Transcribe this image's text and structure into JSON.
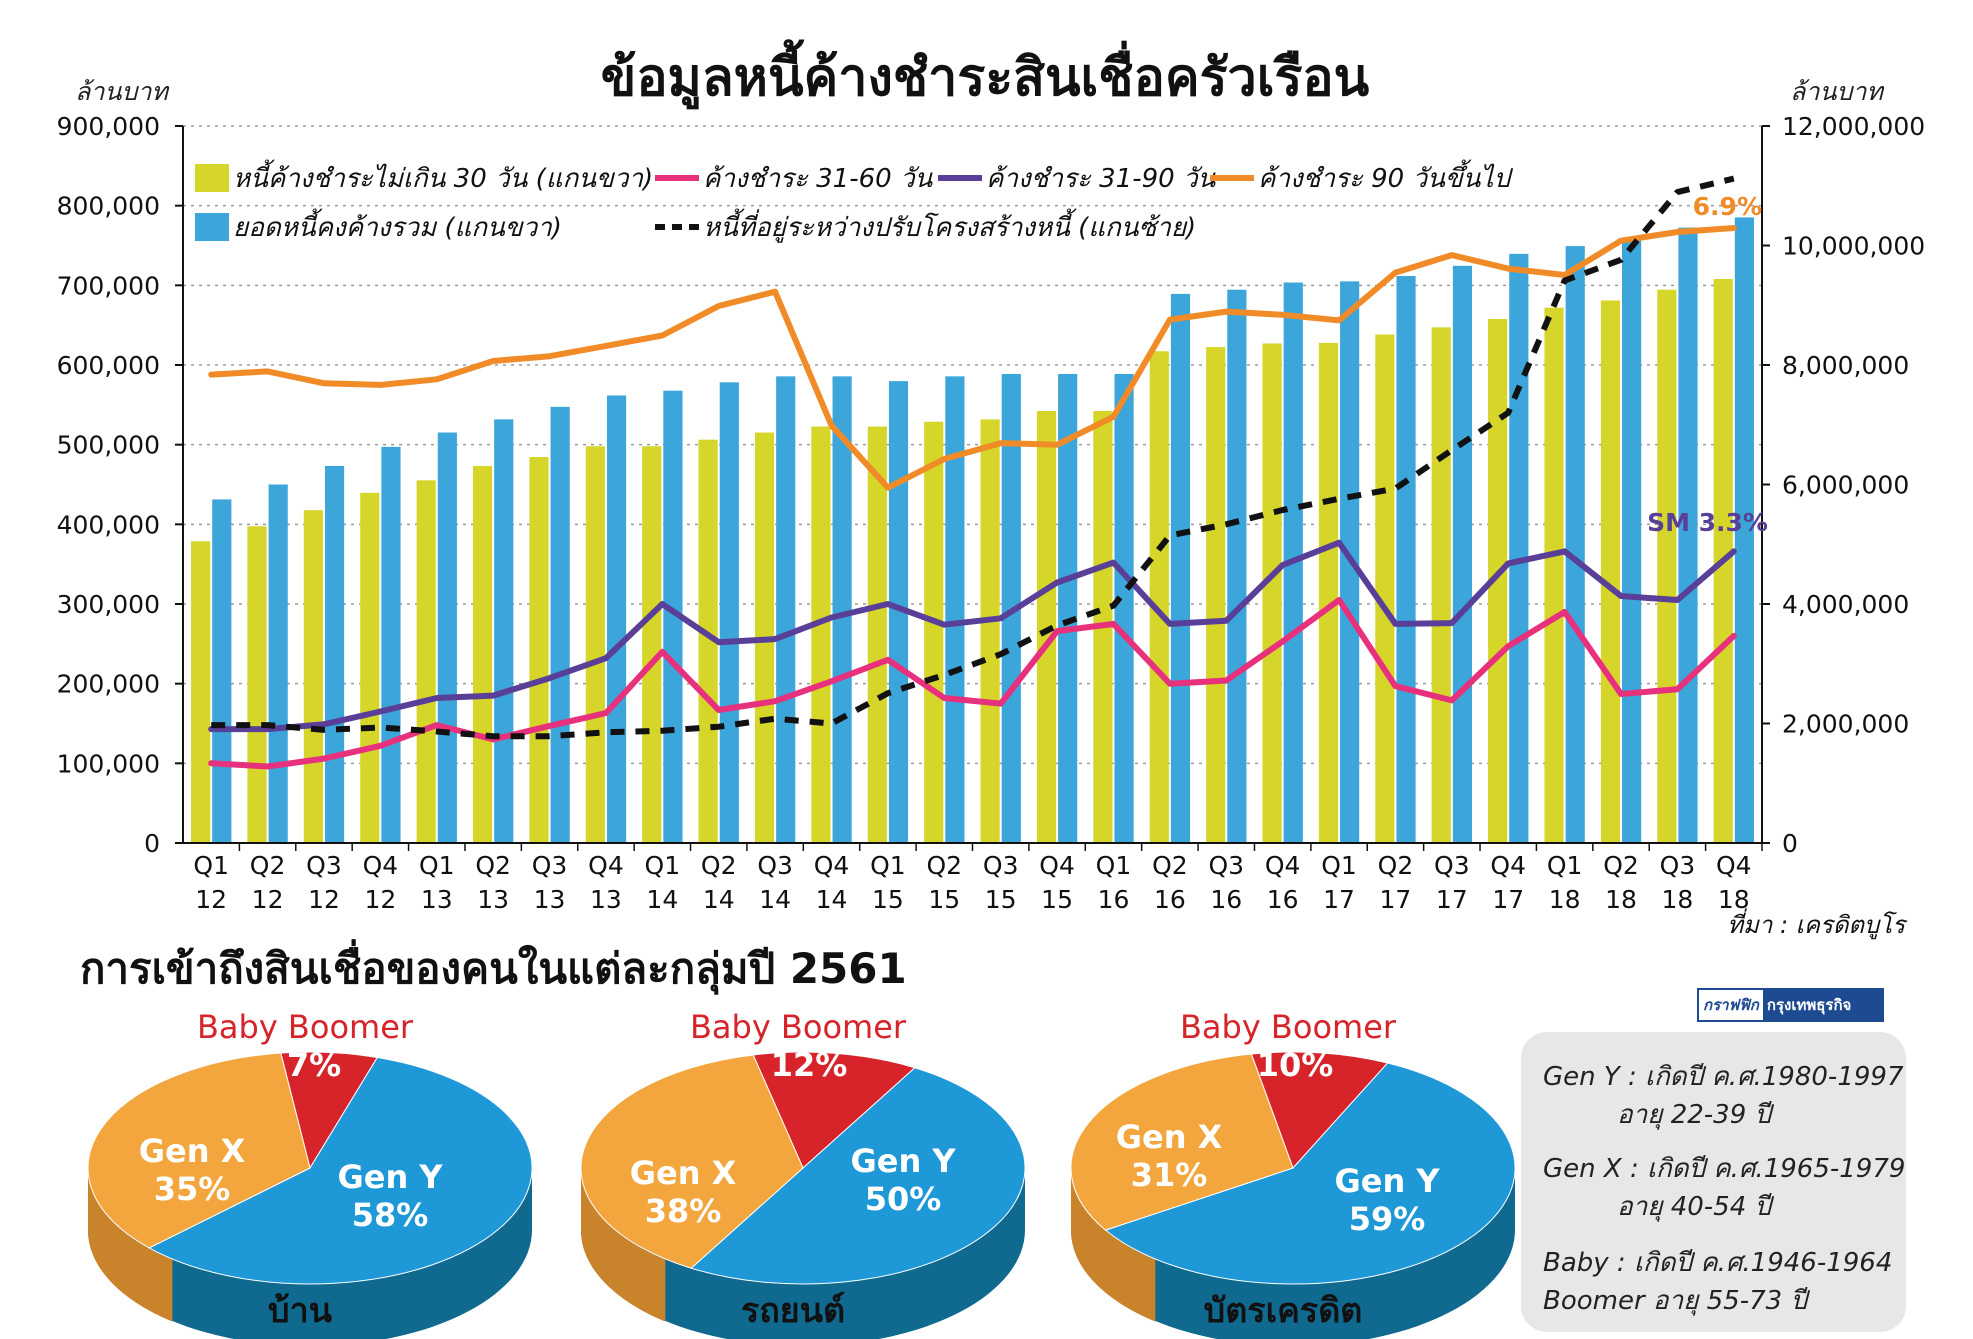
{
  "chart_data": [
    {
      "type": "bar+line",
      "title": "ข้อมูลหนี้ค้างชำระสินเชื่อครัวเรือน",
      "left_axis_label": "ล้านบาท",
      "right_axis_label": "ล้านบาท",
      "left_ticks": [
        "900,000",
        "800,000",
        "700,000",
        "600,000",
        "500,000",
        "400,000",
        "300,000",
        "200,000",
        "100,000",
        "0"
      ],
      "right_ticks": [
        "12,000,000",
        "10,000,000",
        "8,000,000",
        "6,000,000",
        "4,000,000",
        "2,000,000",
        "0"
      ],
      "ylim_left": [
        0,
        900000
      ],
      "ylim_right": [
        0,
        12000000
      ],
      "categories": [
        [
          "Q1",
          "12"
        ],
        [
          "Q2",
          "12"
        ],
        [
          "Q3",
          "12"
        ],
        [
          "Q4",
          "12"
        ],
        [
          "Q1",
          "13"
        ],
        [
          "Q2",
          "13"
        ],
        [
          "Q3",
          "13"
        ],
        [
          "Q4",
          "13"
        ],
        [
          "Q1",
          "14"
        ],
        [
          "Q2",
          "14"
        ],
        [
          "Q3",
          "14"
        ],
        [
          "Q4",
          "14"
        ],
        [
          "Q1",
          "15"
        ],
        [
          "Q2",
          "15"
        ],
        [
          "Q3",
          "15"
        ],
        [
          "Q4",
          "15"
        ],
        [
          "Q1",
          "16"
        ],
        [
          "Q2",
          "16"
        ],
        [
          "Q3",
          "16"
        ],
        [
          "Q4",
          "16"
        ],
        [
          "Q1",
          "17"
        ],
        [
          "Q2",
          "17"
        ],
        [
          "Q3",
          "17"
        ],
        [
          "Q4",
          "17"
        ],
        [
          "Q1",
          "18"
        ],
        [
          "Q2",
          "18"
        ],
        [
          "Q3",
          "18"
        ],
        [
          "Q4",
          "18"
        ]
      ],
      "bar_series": [
        {
          "name": "หนี้ค้างชำระไม่เกิน 30 วัน (แกนขวา)",
          "axis": "right",
          "color": "#d6d62a",
          "values": [
            5050000,
            5300000,
            5570000,
            5860000,
            6070000,
            6310000,
            6460000,
            6640000,
            6640000,
            6750000,
            6870000,
            6970000,
            6970000,
            7050000,
            7090000,
            7230000,
            7230000,
            8230000,
            8300000,
            8360000,
            8370000,
            8510000,
            8630000,
            8770000,
            8960000,
            9080000,
            9260000,
            9440000
          ]
        },
        {
          "name": "ยอดหนี้คงค้างรวม (แกนขวา)",
          "axis": "right",
          "color": "#3ca6db",
          "values": [
            5750000,
            6000000,
            6310000,
            6630000,
            6870000,
            7090000,
            7300000,
            7490000,
            7570000,
            7710000,
            7810000,
            7810000,
            7730000,
            7810000,
            7850000,
            7850000,
            7850000,
            9190000,
            9260000,
            9380000,
            9400000,
            9490000,
            9660000,
            9860000,
            9990000,
            10110000,
            10300000,
            10470000
          ]
        }
      ],
      "line_series": [
        {
          "name": "ค้างชำระ 31-60 วัน",
          "axis": "left",
          "color": "#e8317d",
          "values": [
            100000,
            96000,
            106000,
            122000,
            148000,
            130000,
            147000,
            163000,
            240000,
            167000,
            178000,
            203000,
            230000,
            182000,
            175000,
            266000,
            275000,
            200000,
            204000,
            253000,
            305000,
            197000,
            179000,
            247000,
            290000,
            187000,
            193000,
            260000
          ]
        },
        {
          "name": "ค้างชำระ 31-90 วัน",
          "axis": "left",
          "color": "#5a3f98",
          "values": [
            143000,
            143000,
            149000,
            165000,
            182000,
            185000,
            207000,
            232000,
            300000,
            252000,
            256000,
            283000,
            300000,
            274000,
            282000,
            327000,
            352000,
            275000,
            279000,
            349000,
            377000,
            275000,
            276000,
            351000,
            366000,
            310000,
            305000,
            366000
          ]
        },
        {
          "name": "ค้างชำระ 90 วันขึ้นไป",
          "axis": "left",
          "color": "#f08b28",
          "values": [
            588000,
            592000,
            577000,
            575000,
            582000,
            605000,
            611000,
            624000,
            637000,
            674000,
            692000,
            524000,
            446000,
            482000,
            502000,
            500000,
            535000,
            657000,
            667000,
            663000,
            656000,
            716000,
            738000,
            721000,
            713000,
            756000,
            767000,
            772000
          ]
        },
        {
          "name": "หนี้ที่อยู่ระหว่างปรับโครงสร้างหนี้ (แกนซ้าย)",
          "axis": "left",
          "color": "#111111",
          "dashed": true,
          "values": [
            148000,
            148000,
            142000,
            145000,
            140000,
            134000,
            134000,
            139000,
            141000,
            146000,
            156000,
            150000,
            188000,
            211000,
            237000,
            273000,
            298000,
            386000,
            400000,
            418000,
            432000,
            445000,
            493000,
            540000,
            706000,
            732000,
            817000,
            834000
          ]
        }
      ],
      "annotations": [
        {
          "text": "6.9%",
          "color": "#f08b28"
        },
        {
          "text": "SM 3.3%",
          "color": "#5a3f98"
        }
      ],
      "source": "ที่มา : เครดิตบูโร"
    },
    {
      "type": "pie",
      "title": "การเข้าถึงสินเชื่อของคนในแต่ละกลุ่มปี 2561",
      "top_label": "Baby Boomer",
      "pies": [
        {
          "name": "บ้าน",
          "slices": [
            {
              "label": "Baby Boomer",
              "text": "7%",
              "value": 7,
              "color": "#d6242a"
            },
            {
              "label": "Gen Y",
              "text": "58%",
              "value": 58,
              "color": "#1f98d7"
            },
            {
              "label": "Gen X",
              "text": "35%",
              "value": 35,
              "color": "#f3a63d"
            }
          ]
        },
        {
          "name": "รถยนต์",
          "slices": [
            {
              "label": "Baby Boomer",
              "text": "12%",
              "value": 12,
              "color": "#d6242a"
            },
            {
              "label": "Gen Y",
              "text": "50%",
              "value": 50,
              "color": "#1f98d7"
            },
            {
              "label": "Gen X",
              "text": "38%",
              "value": 38,
              "color": "#f3a63d"
            }
          ]
        },
        {
          "name": "บัตรเครดิต",
          "slices": [
            {
              "label": "Baby Boomer",
              "text": "10%",
              "value": 10,
              "color": "#d6242a"
            },
            {
              "label": "Gen Y",
              "text": "59%",
              "value": 59,
              "color": "#1f98d7"
            },
            {
              "label": "Gen X",
              "text": "31%",
              "value": 31,
              "color": "#f3a63d"
            }
          ]
        }
      ]
    }
  ],
  "badge": {
    "left": "กราฟฟิก",
    "right": "กรุงเทพธุรกิจ"
  },
  "notes": [
    "Gen Y : เกิดปี ค.ศ.1980-1997",
    "อายุ 22-39 ปี",
    "Gen X : เกิดปี ค.ศ.1965-1979",
    "อายุ 40-54 ปี",
    "Baby      : เกิดปี ค.ศ.1946-1964",
    "Boomer    อายุ 55-73 ปี"
  ]
}
